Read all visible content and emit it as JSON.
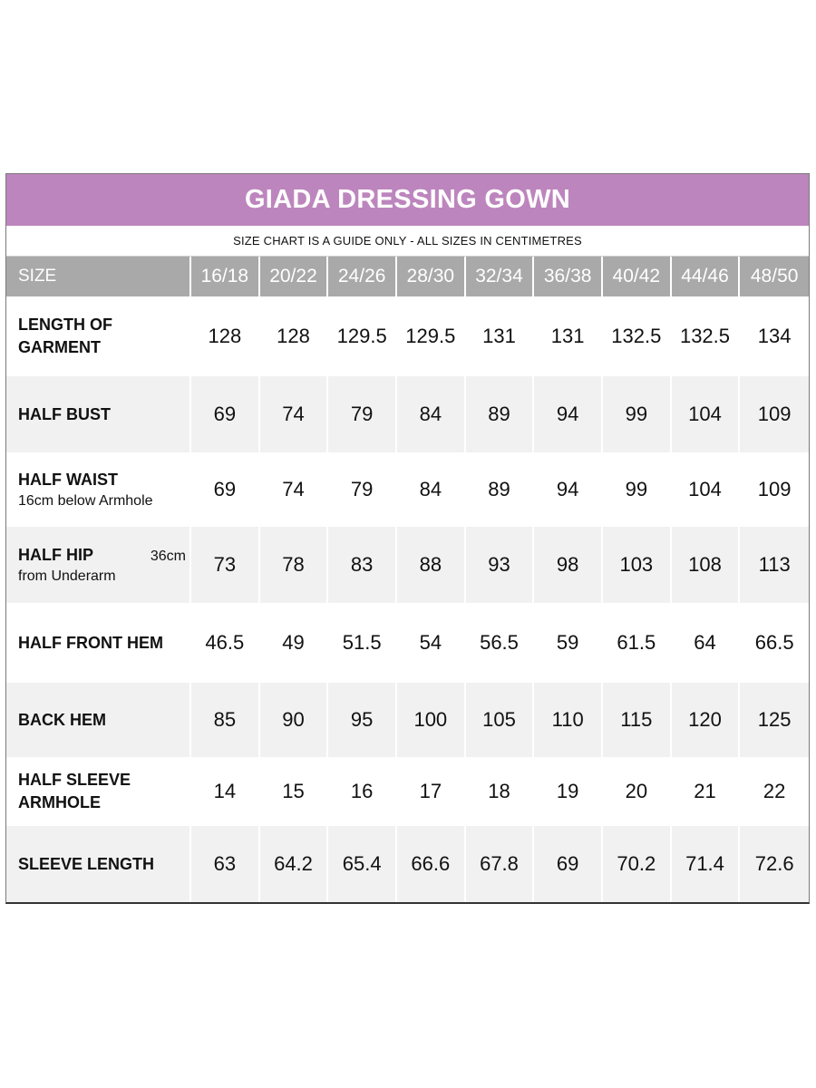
{
  "title": "GIADA DRESSING GOWN",
  "subtitle": "SIZE CHART IS A GUIDE ONLY - ALL SIZES IN CENTIMETRES",
  "header": {
    "size_label": "SIZE",
    "sizes": [
      "16/18",
      "20/22",
      "24/26",
      "28/30",
      "32/34",
      "36/38",
      "40/42",
      "44/46",
      "48/50"
    ]
  },
  "rows": [
    {
      "label_line1": "LENGTH OF",
      "label_line2": "GARMENT",
      "values": [
        "128",
        "128",
        "129.5",
        "129.5",
        "131",
        "131",
        "132.5",
        "132.5",
        "134"
      ]
    },
    {
      "label_line1": "HALF BUST",
      "values": [
        "69",
        "74",
        "79",
        "84",
        "89",
        "94",
        "99",
        "104",
        "109"
      ]
    },
    {
      "label_line1": "HALF WAIST",
      "note": "16cm below Armhole",
      "values": [
        "69",
        "74",
        "79",
        "84",
        "89",
        "94",
        "99",
        "104",
        "109"
      ]
    },
    {
      "label_line1": "HALF HIP",
      "note_right": "36cm",
      "note": "from Underarm",
      "values": [
        "73",
        "78",
        "83",
        "88",
        "93",
        "98",
        "103",
        "108",
        "113"
      ]
    },
    {
      "label_line1": "HALF FRONT HEM",
      "values": [
        "46.5",
        "49",
        "51.5",
        "54",
        "56.5",
        "59",
        "61.5",
        "64",
        "66.5"
      ]
    },
    {
      "label_line1": "BACK HEM",
      "values": [
        "85",
        "90",
        "95",
        "100",
        "105",
        "110",
        "115",
        "120",
        "125"
      ]
    },
    {
      "label_line1": "HALF SLEEVE",
      "label_line2": "ARMHOLE",
      "values": [
        "14",
        "15",
        "16",
        "17",
        "18",
        "19",
        "20",
        "21",
        "22"
      ]
    },
    {
      "label_line1": "SLEEVE LENGTH",
      "values": [
        "63",
        "64.2",
        "65.4",
        "66.6",
        "67.8",
        "69",
        "70.2",
        "71.4",
        "72.6"
      ]
    }
  ]
}
